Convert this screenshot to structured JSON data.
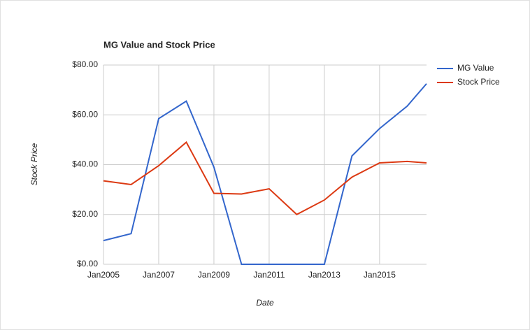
{
  "chart_data": {
    "type": "line",
    "title": "MG Value and Stock Price",
    "x_label": "Date",
    "y_label": "Stock Price",
    "x": [
      2005,
      2006,
      2007,
      2008,
      2009,
      2010,
      2011,
      2012,
      2013,
      2014,
      2015,
      2016,
      2016.7
    ],
    "series": [
      {
        "name": "MG Value",
        "color": "#3366cc",
        "values": [
          9.5,
          12.3,
          58.5,
          65.5,
          39,
          0,
          0,
          0,
          0,
          43.5,
          54.5,
          63.5,
          72.5
        ]
      },
      {
        "name": "Stock Price",
        "color": "#dc3912",
        "values": [
          33.5,
          32,
          39.6,
          49,
          28.5,
          28.2,
          30.3,
          20,
          25.8,
          35,
          40.7,
          41.3,
          40.7
        ]
      }
    ],
    "xlim": [
      2005,
      2016.7
    ],
    "xticks": [
      {
        "value": 2005,
        "label": "Jan2005"
      },
      {
        "value": 2007,
        "label": "Jan2007"
      },
      {
        "value": 2009,
        "label": "Jan2009"
      },
      {
        "value": 2011,
        "label": "Jan2011"
      },
      {
        "value": 2013,
        "label": "Jan2013"
      },
      {
        "value": 2015,
        "label": "Jan2015"
      }
    ],
    "ylim": [
      0,
      80
    ],
    "yticks": [
      {
        "value": 0,
        "label": "$0.00"
      },
      {
        "value": 20,
        "label": "$20.00"
      },
      {
        "value": 40,
        "label": "$40.00"
      },
      {
        "value": 60,
        "label": "$60.00"
      },
      {
        "value": 80,
        "label": "$80.00"
      }
    ],
    "grid": true,
    "legend": "right"
  }
}
